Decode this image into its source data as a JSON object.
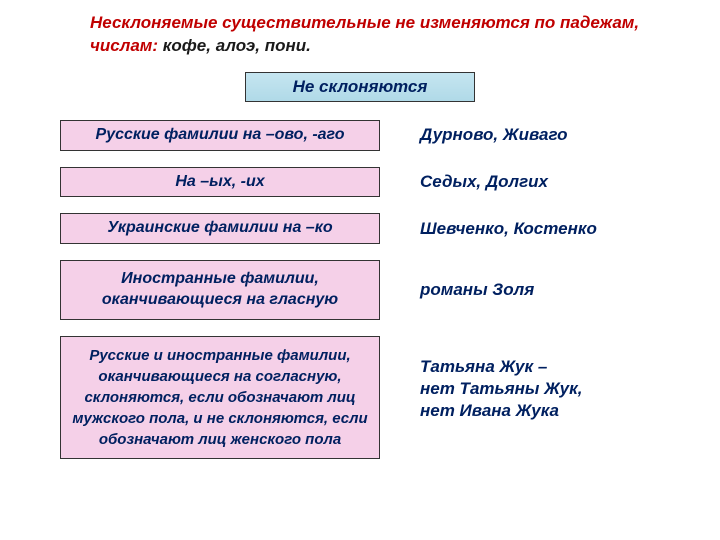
{
  "header": {
    "red_part": "Несклоняемые существительные не изменяются по падежам, числам: ",
    "dark_part": "кофе, алоэ, пони."
  },
  "title": "Не склоняются",
  "rows": [
    {
      "rule": "Русские фамилии на –ово, -аго",
      "example": "Дурново, Живаго",
      "box_class": "pink-box"
    },
    {
      "rule": "На –ых, -их",
      "example": "Седых, Долгих",
      "box_class": "pink-box"
    },
    {
      "rule": "Украинские фамилии на  –ко",
      "example": "Шевченко, Костенко",
      "box_class": "pink-box"
    },
    {
      "rule": "Иностранные фамилии, оканчивающиеся на гласную",
      "example": "романы Золя",
      "box_class": "pink-box tall"
    },
    {
      "rule": "Русские и иностранные фамилии, оканчивающиеся на согласную, склоняются, если обозначают лиц мужского пола, и не склоняются, если обозначают лиц женского пола",
      "example": "Татьяна Жук –\nнет Татьяны Жук,\nнет Ивана Жука",
      "box_class": "pink-box verytall"
    }
  ],
  "colors": {
    "background": "#ffffff",
    "header_red": "#c00000",
    "header_dark": "#1a1a1a",
    "title_bg": "#b0dae8",
    "title_text": "#002060",
    "pink_bg": "#f5d0e8",
    "box_border": "#333333",
    "example_text": "#002060"
  },
  "fonts": {
    "header_size": 17,
    "title_size": 17,
    "rule_size": 16,
    "example_size": 17,
    "style": "italic bold"
  }
}
